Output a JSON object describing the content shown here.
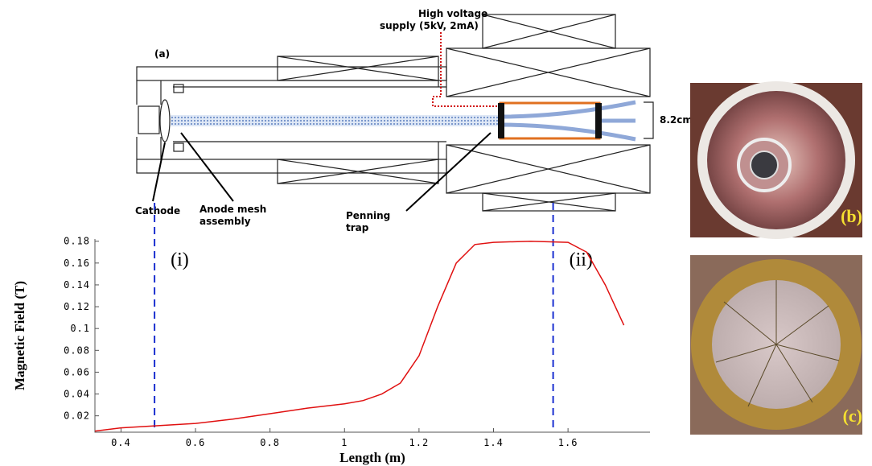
{
  "diagram": {
    "panel_label": "(a)",
    "supply_label": [
      "High voltage",
      "supply (5kV, 2mA)"
    ],
    "cathode_label": "Cathode",
    "anode_label": [
      "Anode mesh",
      "assembly"
    ],
    "trap_label": [
      "Penning",
      "trap"
    ],
    "diameter_label": "8.2cm"
  },
  "photos": {
    "b_label": "(b)",
    "c_label": "(c)"
  },
  "chart_data": {
    "type": "line",
    "x_label": "Length (m)",
    "y_label": "Magnetic Field (T)",
    "x": [
      0.33,
      0.4,
      0.5,
      0.6,
      0.7,
      0.8,
      0.9,
      1.0,
      1.05,
      1.1,
      1.15,
      1.2,
      1.25,
      1.3,
      1.35,
      1.4,
      1.5,
      1.6,
      1.65,
      1.7,
      1.75
    ],
    "values": [
      0.006,
      0.009,
      0.011,
      0.013,
      0.017,
      0.022,
      0.027,
      0.031,
      0.034,
      0.04,
      0.05,
      0.075,
      0.12,
      0.16,
      0.177,
      0.179,
      0.18,
      0.179,
      0.17,
      0.14,
      0.103
    ],
    "color": "#e01010",
    "xlim": [
      0.33,
      1.82
    ],
    "ylim": [
      0.005,
      0.182
    ],
    "xticks": [
      0.4,
      0.6,
      0.8,
      1,
      1.2,
      1.4,
      1.6
    ],
    "yticks": [
      0.02,
      0.04,
      0.06,
      0.08,
      0.1,
      0.12,
      0.14,
      0.16,
      0.18
    ],
    "markers": [
      {
        "x": 0.49,
        "label": "(i)"
      },
      {
        "x": 1.56,
        "label": "(ii)"
      }
    ],
    "marker_color": "#1a2fd0"
  }
}
